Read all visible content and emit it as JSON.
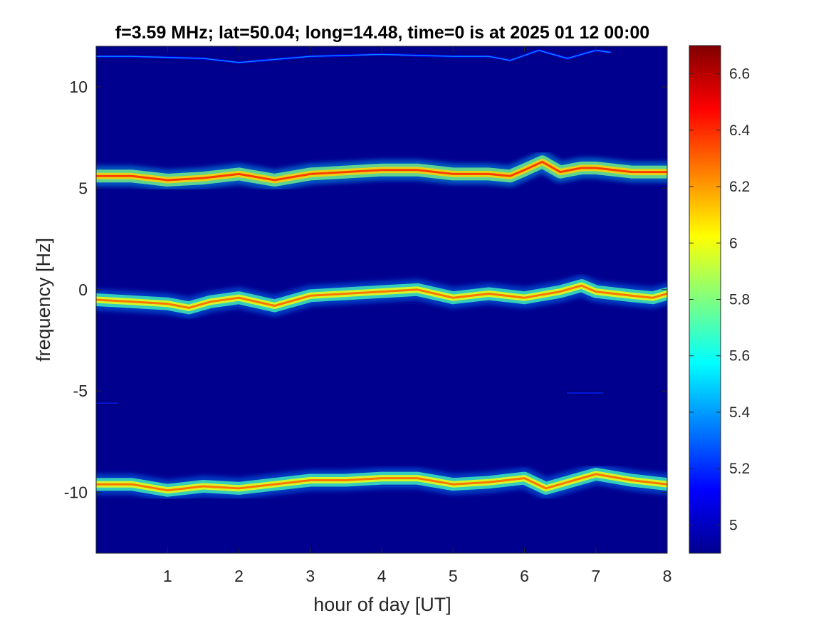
{
  "chart_data": {
    "type": "heatmap",
    "title": "f=3.59 MHz;  lat=50.04; long=14.48, time=0 is at 2025 01 12 00:00",
    "xlabel": "hour of day [UT]",
    "ylabel": "frequency [Hz]",
    "xlim": [
      0,
      8
    ],
    "ylim": [
      -13,
      12
    ],
    "xticks": [
      "1",
      "2",
      "3",
      "4",
      "5",
      "6",
      "7",
      "8"
    ],
    "yticks": [
      "-10",
      "-5",
      "0",
      "5",
      "10"
    ],
    "colorbar": {
      "colormap": "jet",
      "range": [
        4.9,
        6.7
      ],
      "ticks": [
        "5",
        "5.2",
        "5.4",
        "5.6",
        "5.8",
        "6",
        "6.2",
        "6.4",
        "6.6"
      ]
    },
    "background_color": "#00008f",
    "bands": [
      {
        "center_points": [
          [
            0,
            5.6
          ],
          [
            0.5,
            5.6
          ],
          [
            1.0,
            5.4
          ],
          [
            1.5,
            5.5
          ],
          [
            2.0,
            5.7
          ],
          [
            2.5,
            5.4
          ],
          [
            3.0,
            5.7
          ],
          [
            3.5,
            5.8
          ],
          [
            4.0,
            5.9
          ],
          [
            4.5,
            5.9
          ],
          [
            5.0,
            5.7
          ],
          [
            5.5,
            5.7
          ],
          [
            5.8,
            5.6
          ],
          [
            6.0,
            5.9
          ],
          [
            6.25,
            6.3
          ],
          [
            6.5,
            5.8
          ],
          [
            6.8,
            6.0
          ],
          [
            7.0,
            6.0
          ],
          [
            7.5,
            5.8
          ],
          [
            8.0,
            5.8
          ]
        ],
        "intensity": 6.5
      },
      {
        "center_points": [
          [
            0,
            -0.5
          ],
          [
            0.5,
            -0.6
          ],
          [
            1.0,
            -0.7
          ],
          [
            1.3,
            -0.9
          ],
          [
            1.6,
            -0.6
          ],
          [
            2.0,
            -0.4
          ],
          [
            2.5,
            -0.8
          ],
          [
            3.0,
            -0.3
          ],
          [
            3.5,
            -0.2
          ],
          [
            4.0,
            -0.1
          ],
          [
            4.5,
            0.0
          ],
          [
            5.0,
            -0.4
          ],
          [
            5.5,
            -0.2
          ],
          [
            6.0,
            -0.4
          ],
          [
            6.5,
            -0.1
          ],
          [
            6.8,
            0.2
          ],
          [
            7.0,
            -0.1
          ],
          [
            7.5,
            -0.3
          ],
          [
            7.8,
            -0.4
          ],
          [
            8.0,
            -0.2
          ]
        ],
        "intensity": 6.4
      },
      {
        "center_points": [
          [
            0,
            -9.6
          ],
          [
            0.5,
            -9.6
          ],
          [
            1.0,
            -9.9
          ],
          [
            1.5,
            -9.7
          ],
          [
            2.0,
            -9.8
          ],
          [
            2.5,
            -9.6
          ],
          [
            3.0,
            -9.4
          ],
          [
            3.5,
            -9.4
          ],
          [
            4.0,
            -9.3
          ],
          [
            4.5,
            -9.3
          ],
          [
            5.0,
            -9.6
          ],
          [
            5.5,
            -9.5
          ],
          [
            6.0,
            -9.3
          ],
          [
            6.3,
            -9.8
          ],
          [
            6.6,
            -9.5
          ],
          [
            7.0,
            -9.1
          ],
          [
            7.5,
            -9.4
          ],
          [
            8.0,
            -9.6
          ]
        ],
        "intensity": 6.4
      },
      {
        "center_points": [
          [
            0,
            11.5
          ],
          [
            0.5,
            11.5
          ],
          [
            1.5,
            11.4
          ],
          [
            2.0,
            11.2
          ],
          [
            3.0,
            11.5
          ],
          [
            4.0,
            11.6
          ],
          [
            5.0,
            11.5
          ],
          [
            5.5,
            11.5
          ],
          [
            5.8,
            11.3
          ],
          [
            6.2,
            11.8
          ],
          [
            6.6,
            11.4
          ],
          [
            7.0,
            11.8
          ],
          [
            7.2,
            11.7
          ]
        ],
        "intensity": 5.5
      },
      {
        "center_points": [
          [
            0,
            -5.6
          ],
          [
            0.3,
            -5.6
          ]
        ],
        "intensity": 5.3
      },
      {
        "center_points": [
          [
            6.6,
            -5.1
          ],
          [
            7.1,
            -5.1
          ]
        ],
        "intensity": 5.3
      }
    ]
  }
}
